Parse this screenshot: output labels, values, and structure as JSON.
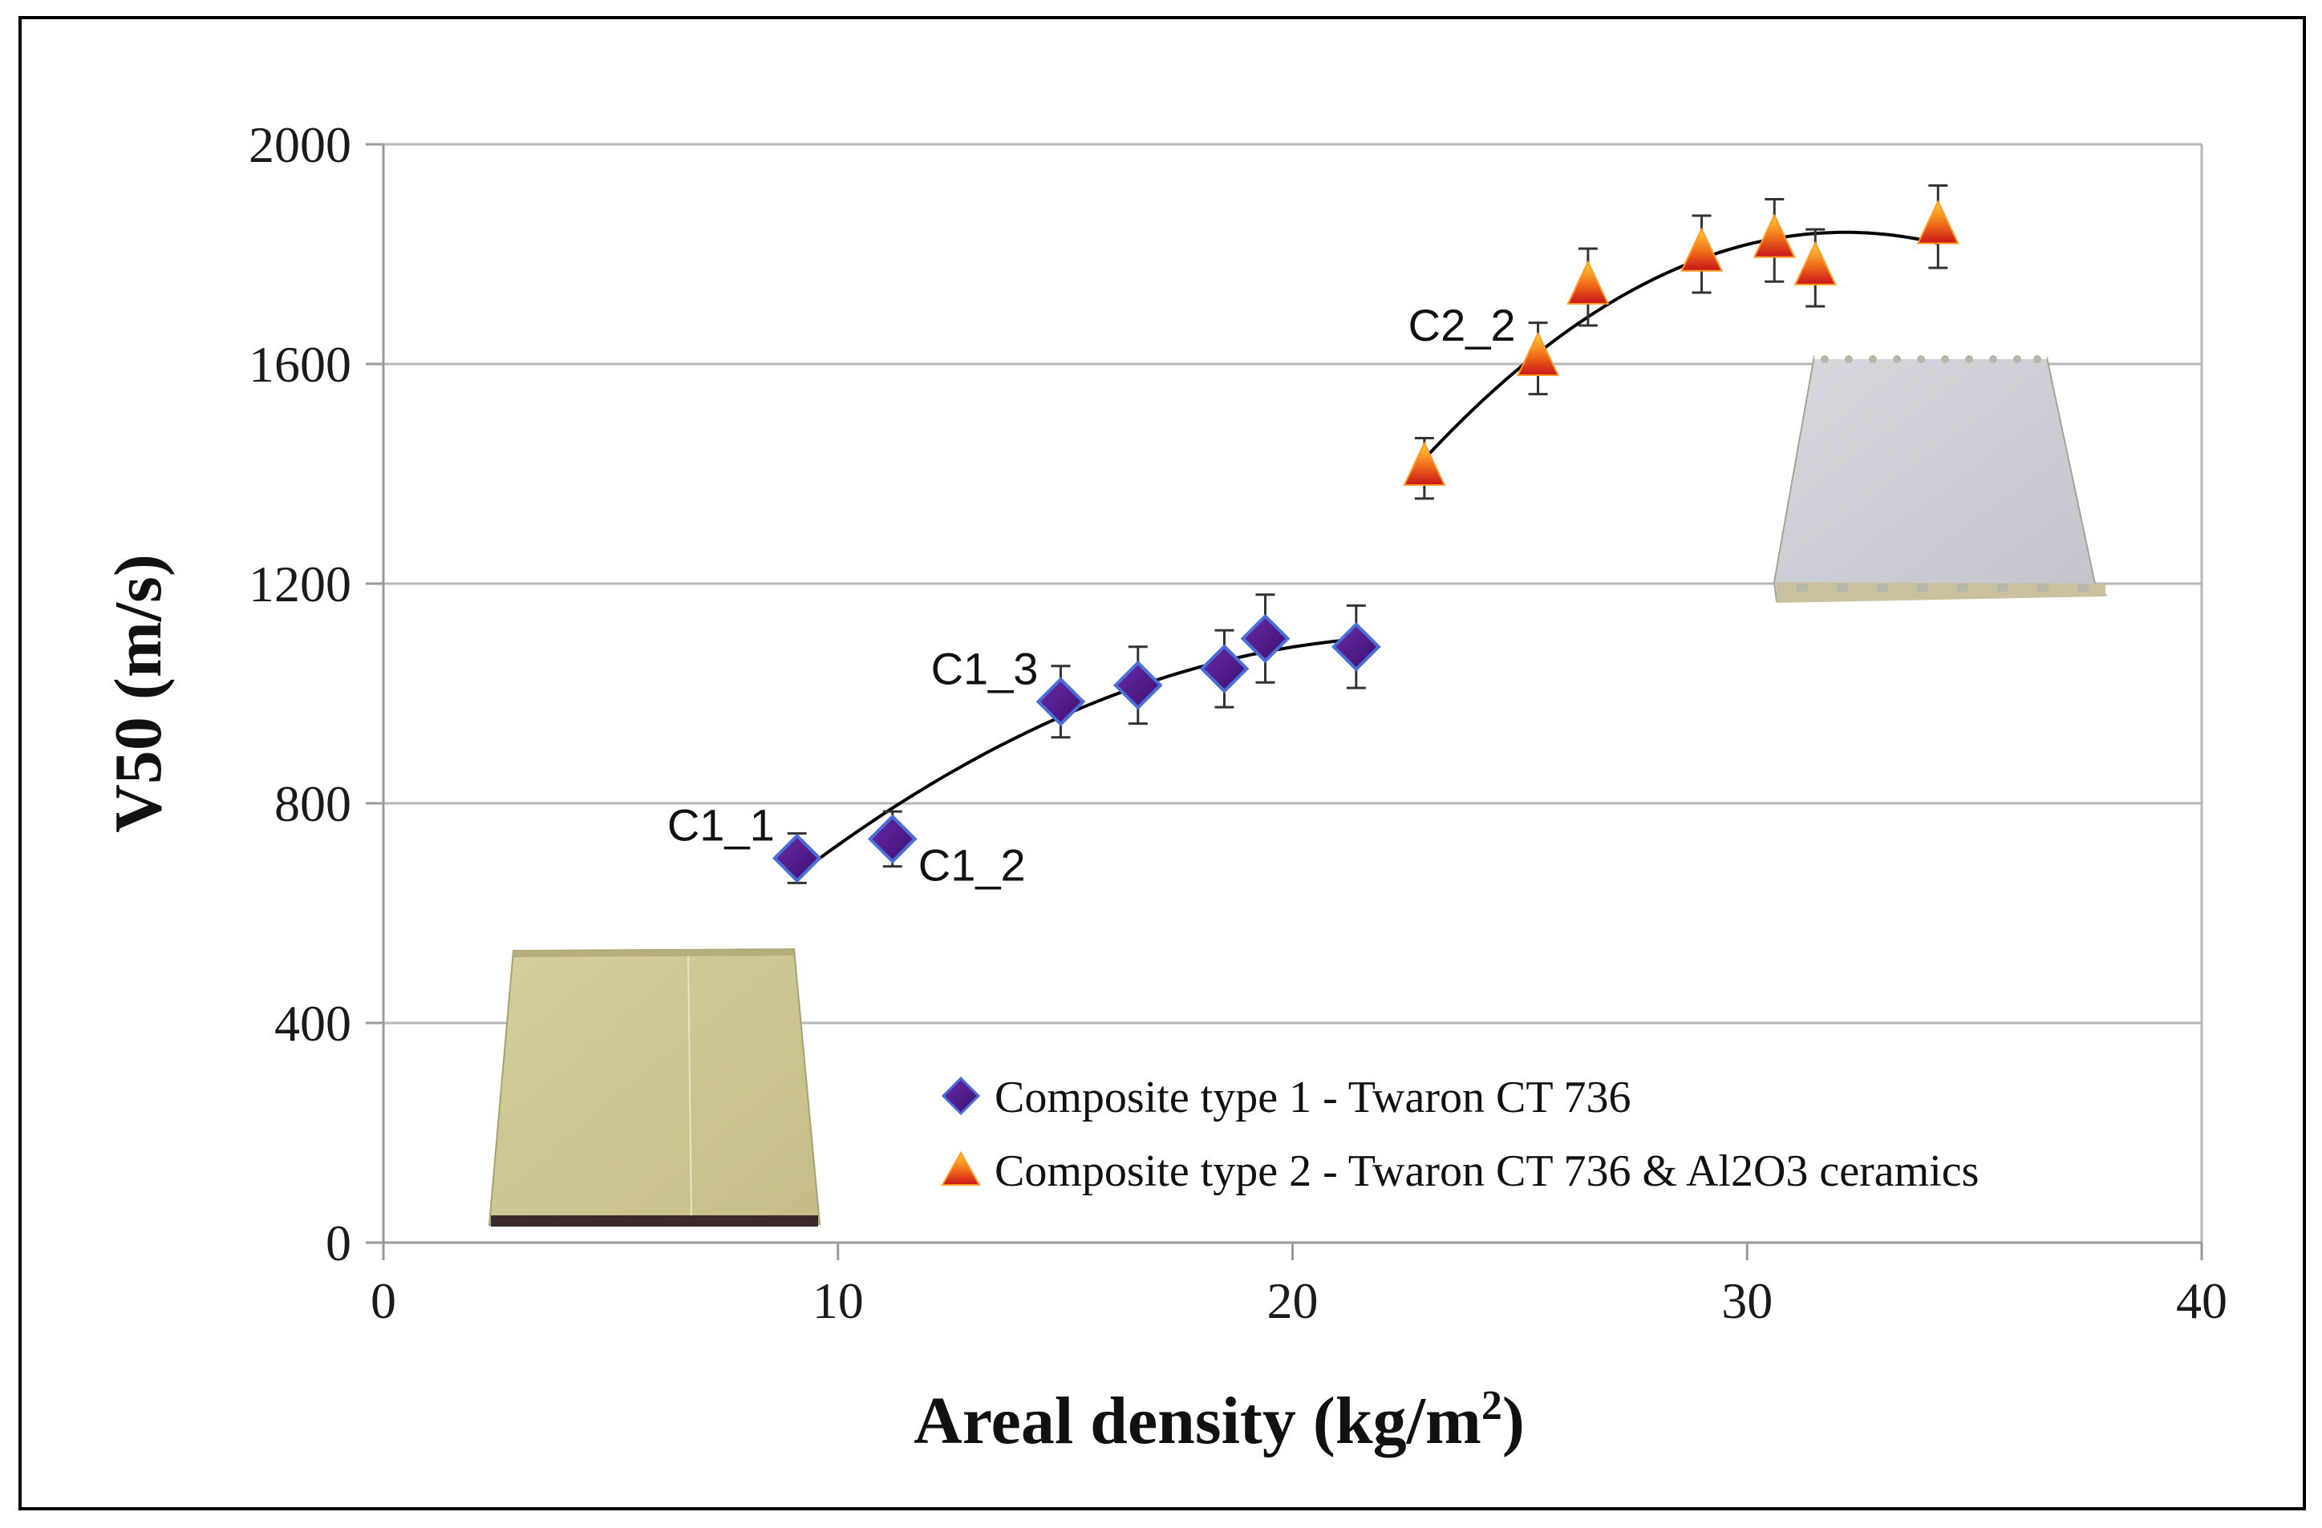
{
  "chart_data": {
    "type": "scatter",
    "title": "",
    "xlabel": "Areal density (kg/m",
    "xlabel_sup": "2",
    "xlabel_end": ")",
    "ylabel": "V50 (m/s)",
    "xlim": [
      0,
      40
    ],
    "ylim": [
      0,
      2000
    ],
    "x_ticks": [
      0,
      10,
      20,
      30,
      40
    ],
    "y_ticks": [
      0,
      400,
      800,
      1200,
      1600,
      2000
    ],
    "x_tick_labels": [
      "0",
      "10",
      "20",
      "30",
      "40"
    ],
    "y_tick_labels": [
      "0",
      "400",
      "800",
      "1200",
      "1600",
      "2000"
    ],
    "grid": "horizontal",
    "legend_position": "bottom-right",
    "series": [
      {
        "name": "Composite type 1 - Twaron CT 736",
        "marker": "diamond",
        "color": "#5b1f8c",
        "edge_color": "#4a6fd8",
        "points": [
          {
            "x": 9.1,
            "y": 700,
            "err": 45
          },
          {
            "x": 11.2,
            "y": 735,
            "err": 50
          },
          {
            "x": 14.9,
            "y": 985,
            "err": 65
          },
          {
            "x": 16.6,
            "y": 1015,
            "err": 70
          },
          {
            "x": 18.5,
            "y": 1045,
            "err": 70
          },
          {
            "x": 19.4,
            "y": 1100,
            "err": 80
          },
          {
            "x": 21.4,
            "y": 1085,
            "err": 75
          }
        ],
        "trend": {
          "type": "poly2",
          "x_range": [
            9.1,
            21.4
          ]
        }
      },
      {
        "name": "Composite type 2 - Twaron CT 736 & Al2O3 ceramics",
        "marker": "triangle",
        "color": "#e8301c",
        "edge_color": "#ff9a1e",
        "points": [
          {
            "x": 22.9,
            "y": 1410,
            "err": 55
          },
          {
            "x": 25.4,
            "y": 1610,
            "err": 65
          },
          {
            "x": 26.5,
            "y": 1740,
            "err": 70
          },
          {
            "x": 29.0,
            "y": 1800,
            "err": 70
          },
          {
            "x": 30.6,
            "y": 1825,
            "err": 75
          },
          {
            "x": 31.5,
            "y": 1775,
            "err": 70
          },
          {
            "x": 34.2,
            "y": 1850,
            "err": 75
          }
        ],
        "trend": {
          "type": "poly2",
          "x_range": [
            22.9,
            34.2
          ]
        }
      }
    ],
    "annotations": [
      {
        "text": "C1_1",
        "x": 9.1,
        "y": 700,
        "anchor": "upper-left"
      },
      {
        "text": "C1_2",
        "x": 11.2,
        "y": 735,
        "anchor": "lower-right"
      },
      {
        "text": "C1_3",
        "x": 14.9,
        "y": 985,
        "anchor": "upper-left"
      },
      {
        "text": "C2_2",
        "x": 25.4,
        "y": 1610,
        "anchor": "upper-left"
      }
    ]
  }
}
